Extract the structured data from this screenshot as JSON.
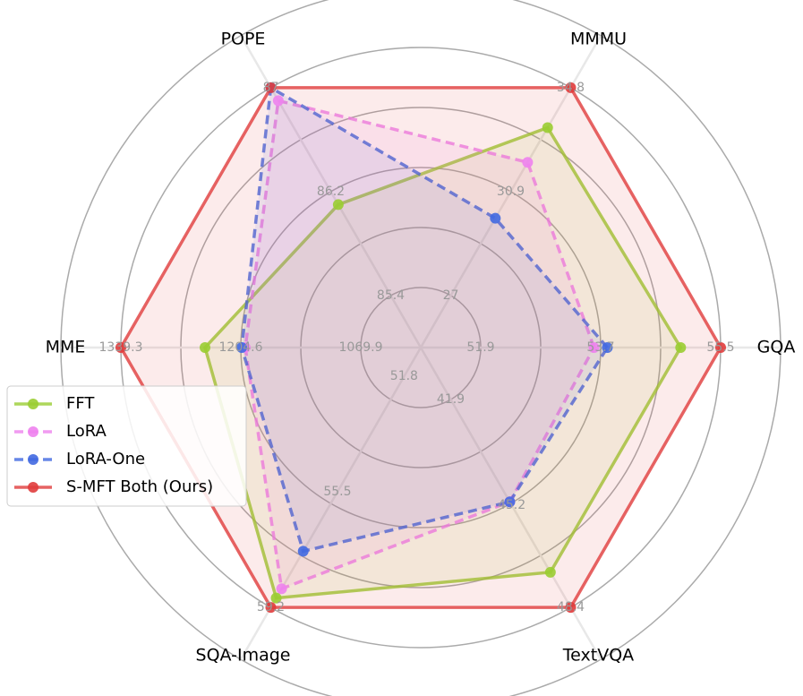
{
  "chart_data": {
    "type": "radar",
    "axes": [
      {
        "name": "GQA",
        "rlim": [
          51.0,
          55.5
        ],
        "ticks": [
          51.9,
          53.7,
          55.5
        ]
      },
      {
        "name": "MMMU",
        "rlim": [
          25.05,
          34.8
        ],
        "ticks": [
          27.0,
          30.9,
          34.8
        ]
      },
      {
        "name": "POPE",
        "rlim": [
          85.0,
          87.0
        ],
        "ticks": [
          85.4,
          86.2,
          87.0
        ]
      },
      {
        "name": "MME",
        "rlim": [
          1002.55,
          1339.3
        ],
        "ticks": [
          1069.9,
          1204.6,
          1339.3
        ]
      },
      {
        "name": "SQA-Image",
        "rlim": [
          50.875,
          59.2
        ],
        "ticks": [
          51.8,
          55.5,
          59.2
        ]
      },
      {
        "name": "TextVQA",
        "rlim": [
          40.275,
          48.4
        ],
        "ticks": [
          41.9,
          45.2,
          48.4
        ]
      }
    ],
    "series": [
      {
        "name": "FFT",
        "color": "#9acd32",
        "linestyle": "solid",
        "values": [
          54.9,
          33.3,
          86.1,
          1244.8,
          58.9,
          47.3
        ]
      },
      {
        "name": "LoRA",
        "color": "#ee82ee",
        "linestyle": "dashed",
        "values": [
          53.6,
          32.0,
          86.9,
          1199.6,
          58.6,
          45.1
        ]
      },
      {
        "name": "LoRA-One",
        "color": "#4169e1",
        "linestyle": "dashed",
        "values": [
          53.8,
          29.9,
          87.0,
          1203.6,
          57.4,
          45.1
        ]
      },
      {
        "name": "S-MFT Both (Ours)",
        "color": "#e03c3c",
        "linestyle": "solid",
        "values": [
          55.5,
          34.8,
          87.0,
          1339.3,
          59.2,
          48.4
        ]
      }
    ],
    "legend": "lower left"
  }
}
